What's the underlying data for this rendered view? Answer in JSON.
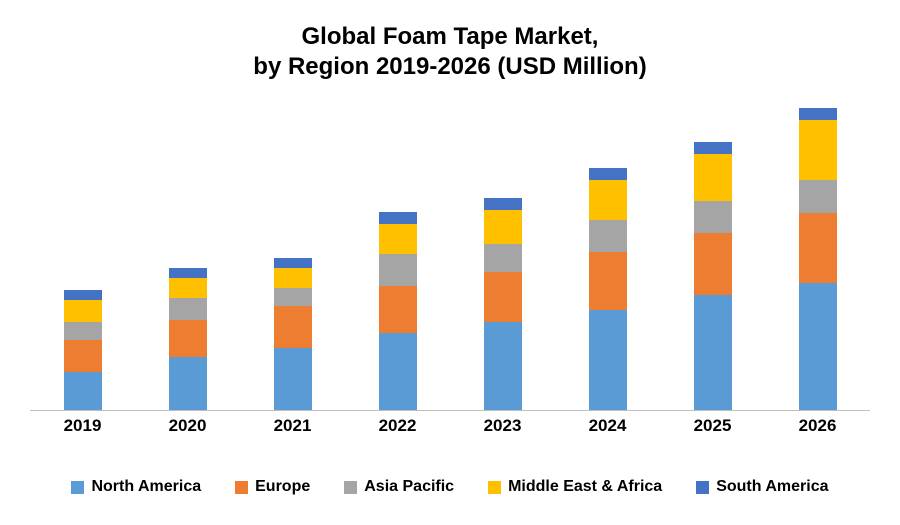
{
  "title": {
    "line1": "Global Foam Tape Market,",
    "line2": "by Region 2019-2026 (USD Million)"
  },
  "chart_data": {
    "type": "bar",
    "stacked": true,
    "title": "Global Foam Tape Market, by Region 2019-2026 (USD Million)",
    "xlabel": "",
    "ylabel": "USD Million",
    "categories": [
      "2019",
      "2020",
      "2021",
      "2022",
      "2023",
      "2024",
      "2025",
      "2026"
    ],
    "series": [
      {
        "name": "North America",
        "color": "#5B9BD5",
        "values": [
          380,
          530,
          620,
          770,
          880,
          1000,
          1150,
          1270
        ]
      },
      {
        "name": "Europe",
        "color": "#ED7D31",
        "values": [
          320,
          370,
          420,
          470,
          500,
          580,
          620,
          700
        ]
      },
      {
        "name": "Asia Pacific",
        "color": "#A5A5A5",
        "values": [
          180,
          220,
          180,
          320,
          280,
          320,
          320,
          330
        ]
      },
      {
        "name": "Middle East & Africa",
        "color": "#FFC000",
        "values": [
          220,
          200,
          200,
          300,
          340,
          400,
          470,
          600
        ]
      },
      {
        "name": "South America",
        "color": "#4472C4",
        "values": [
          100,
          100,
          100,
          120,
          120,
          120,
          120,
          120
        ]
      }
    ],
    "ylim": [
      0,
      3100
    ],
    "grid": false,
    "legend_position": "bottom",
    "axis_labels_visible": false
  }
}
